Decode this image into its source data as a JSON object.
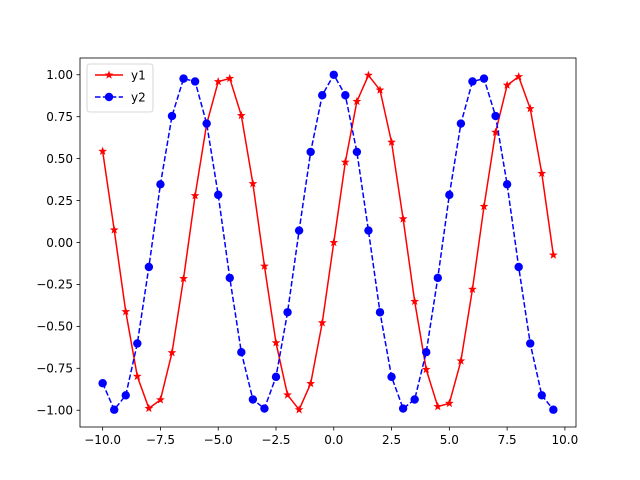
{
  "chart_data": {
    "type": "line",
    "title": "",
    "xlabel": "",
    "ylabel": "",
    "xlim": [
      -10.98,
      10.48
    ],
    "ylim": [
      -1.1,
      1.1
    ],
    "grid": false,
    "legend_position": "upper-left",
    "x_ticks": [
      -10.0,
      -7.5,
      -5.0,
      -2.5,
      0.0,
      2.5,
      5.0,
      7.5,
      10.0
    ],
    "x_tick_labels": [
      "−10.0",
      "−7.5",
      "−5.0",
      "−2.5",
      "0.0",
      "2.5",
      "5.0",
      "7.5",
      "10.0"
    ],
    "y_ticks": [
      -1.0,
      -0.75,
      -0.5,
      -0.25,
      0.0,
      0.25,
      0.5,
      0.75,
      1.0
    ],
    "y_tick_labels": [
      "−1.00",
      "−0.75",
      "−0.50",
      "−0.25",
      "0.00",
      "0.25",
      "0.50",
      "0.75",
      "1.00"
    ],
    "x": [
      -10.0,
      -9.5,
      -9.0,
      -8.5,
      -8.0,
      -7.5,
      -7.0,
      -6.5,
      -6.0,
      -5.5,
      -5.0,
      -4.5,
      -4.0,
      -3.5,
      -3.0,
      -2.5,
      -2.0,
      -1.5,
      -1.0,
      -0.5,
      0.0,
      0.5,
      1.0,
      1.5,
      2.0,
      2.5,
      3.0,
      3.5,
      4.0,
      4.5,
      5.0,
      5.5,
      6.0,
      6.5,
      7.0,
      7.5,
      8.0,
      8.5,
      9.0,
      9.5
    ],
    "series": [
      {
        "name": "y1",
        "color": "#ff0000",
        "line_style": "solid",
        "marker": "star",
        "values": [
          0.544,
          0.075,
          -0.412,
          -0.798,
          -0.989,
          -0.938,
          -0.657,
          -0.215,
          0.279,
          0.706,
          0.959,
          0.978,
          0.757,
          0.351,
          -0.141,
          -0.598,
          -0.909,
          -0.997,
          -0.841,
          -0.479,
          0.0,
          0.479,
          0.841,
          0.997,
          0.909,
          0.598,
          0.141,
          -0.351,
          -0.757,
          -0.978,
          -0.959,
          -0.706,
          -0.279,
          0.215,
          0.657,
          0.938,
          0.989,
          0.798,
          0.412,
          -0.075
        ]
      },
      {
        "name": "y2",
        "color": "#0000ff",
        "line_style": "dashed",
        "marker": "circle",
        "values": [
          -0.839,
          -0.997,
          -0.911,
          -0.602,
          -0.146,
          0.347,
          0.754,
          0.977,
          0.96,
          0.709,
          0.284,
          -0.211,
          -0.654,
          -0.936,
          -0.99,
          -0.801,
          -0.416,
          0.071,
          0.54,
          0.878,
          1.0,
          0.878,
          0.54,
          0.071,
          -0.416,
          -0.801,
          -0.99,
          -0.936,
          -0.654,
          -0.211,
          0.284,
          0.709,
          0.96,
          0.977,
          0.754,
          0.347,
          -0.146,
          -0.602,
          -0.911,
          -0.997
        ]
      }
    ]
  }
}
